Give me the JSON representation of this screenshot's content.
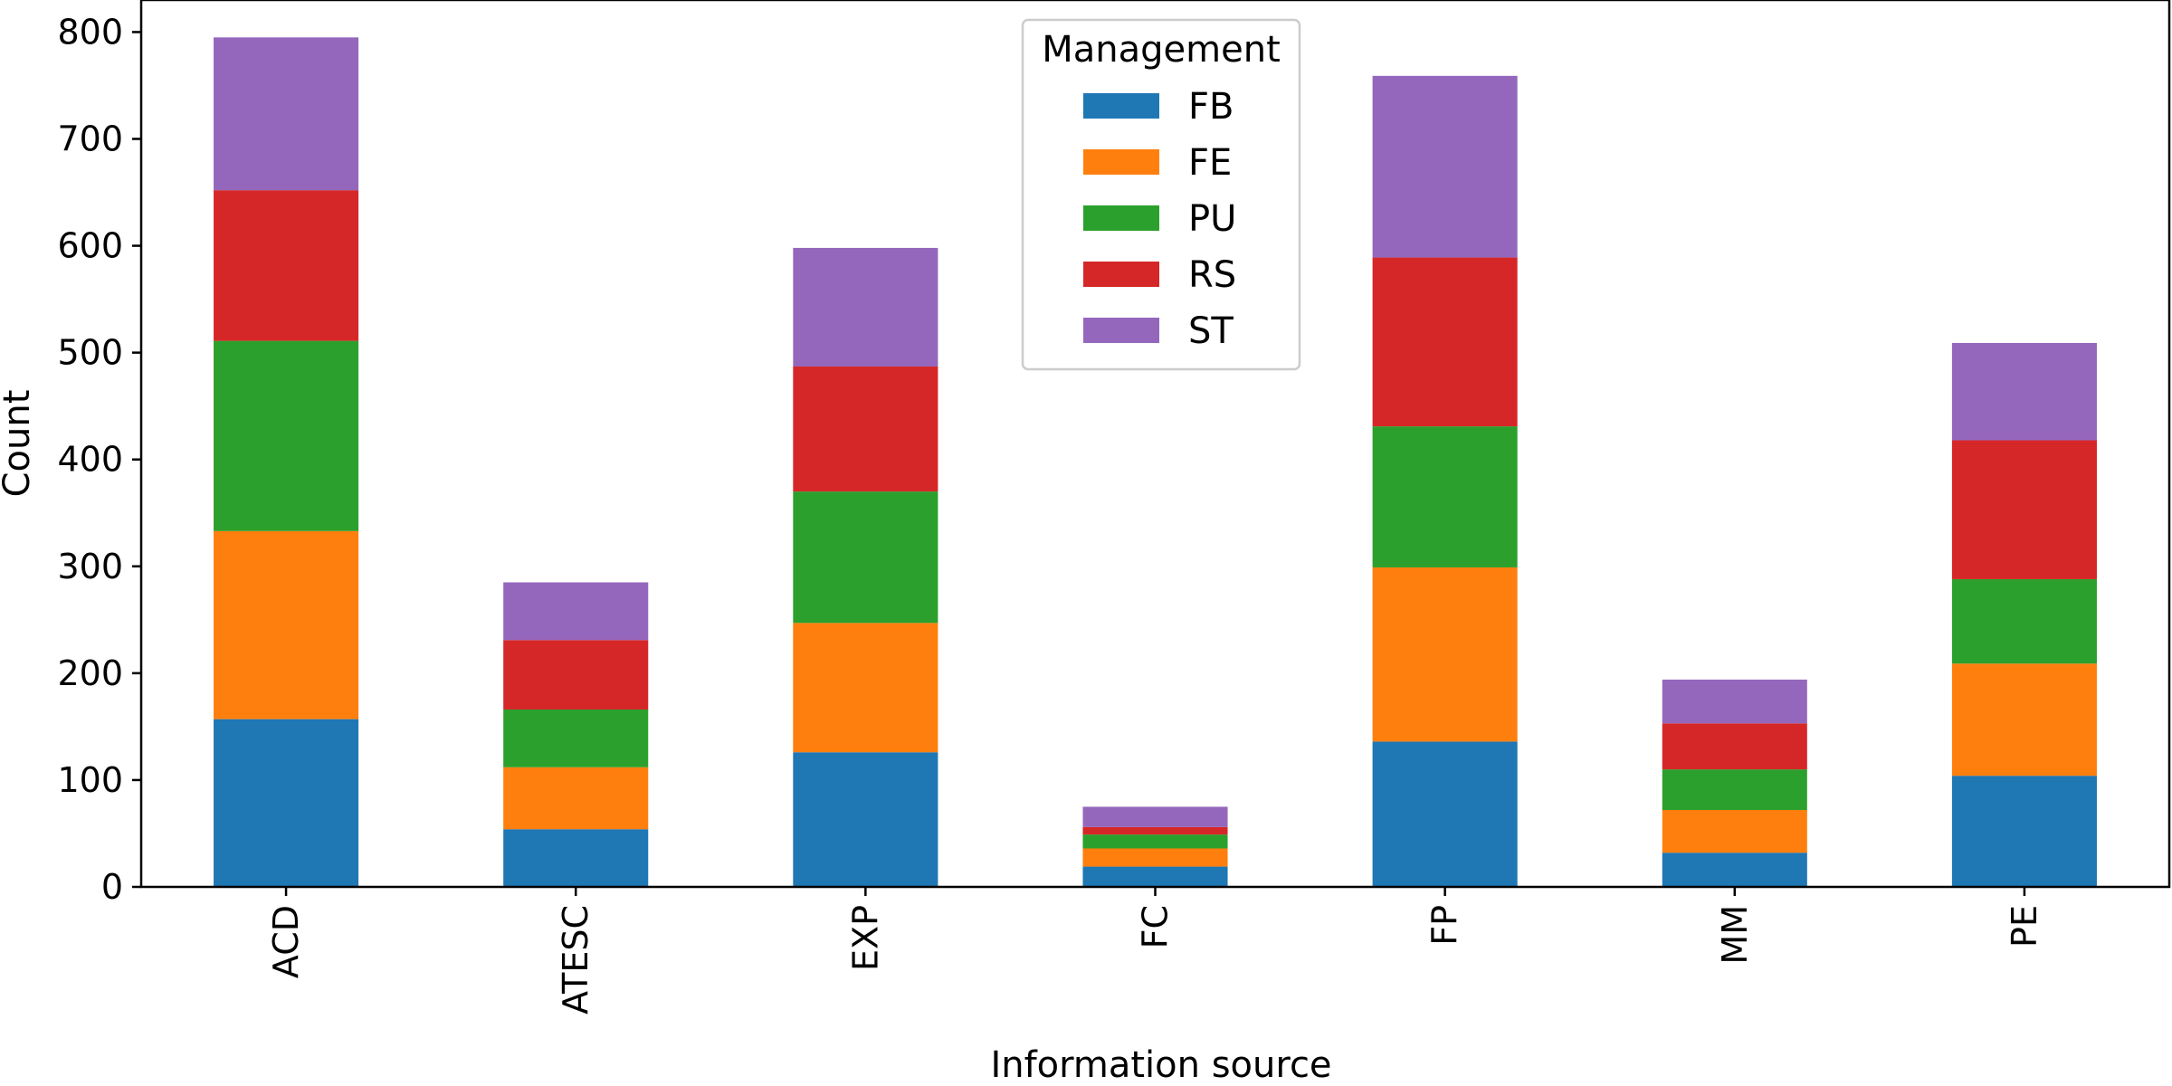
{
  "chart_data": {
    "type": "bar",
    "stacked": true,
    "categories": [
      "ACD",
      "ATESC",
      "EXP",
      "FC",
      "FP",
      "MM",
      "PE"
    ],
    "series": [
      {
        "name": "FB",
        "color": "#1f77b4",
        "values": [
          157,
          54,
          126,
          19,
          136,
          32,
          104
        ]
      },
      {
        "name": "FE",
        "color": "#ff7f0e",
        "values": [
          176,
          58,
          121,
          17,
          163,
          40,
          105
        ]
      },
      {
        "name": "PU",
        "color": "#2ca02c",
        "values": [
          178,
          54,
          123,
          13,
          132,
          38,
          79
        ]
      },
      {
        "name": "RS",
        "color": "#d62728",
        "values": [
          141,
          65,
          117,
          7,
          158,
          43,
          130
        ]
      },
      {
        "name": "ST",
        "color": "#9467bd",
        "values": [
          143,
          54,
          111,
          19,
          170,
          41,
          91
        ]
      }
    ],
    "xlabel": "Information source",
    "ylabel": "Count",
    "ylim": [
      0,
      830
    ],
    "yticks": [
      0,
      100,
      200,
      300,
      400,
      500,
      600,
      700,
      800
    ],
    "legend": {
      "title": "Management",
      "placement": "upper-center"
    },
    "grid": false
  }
}
